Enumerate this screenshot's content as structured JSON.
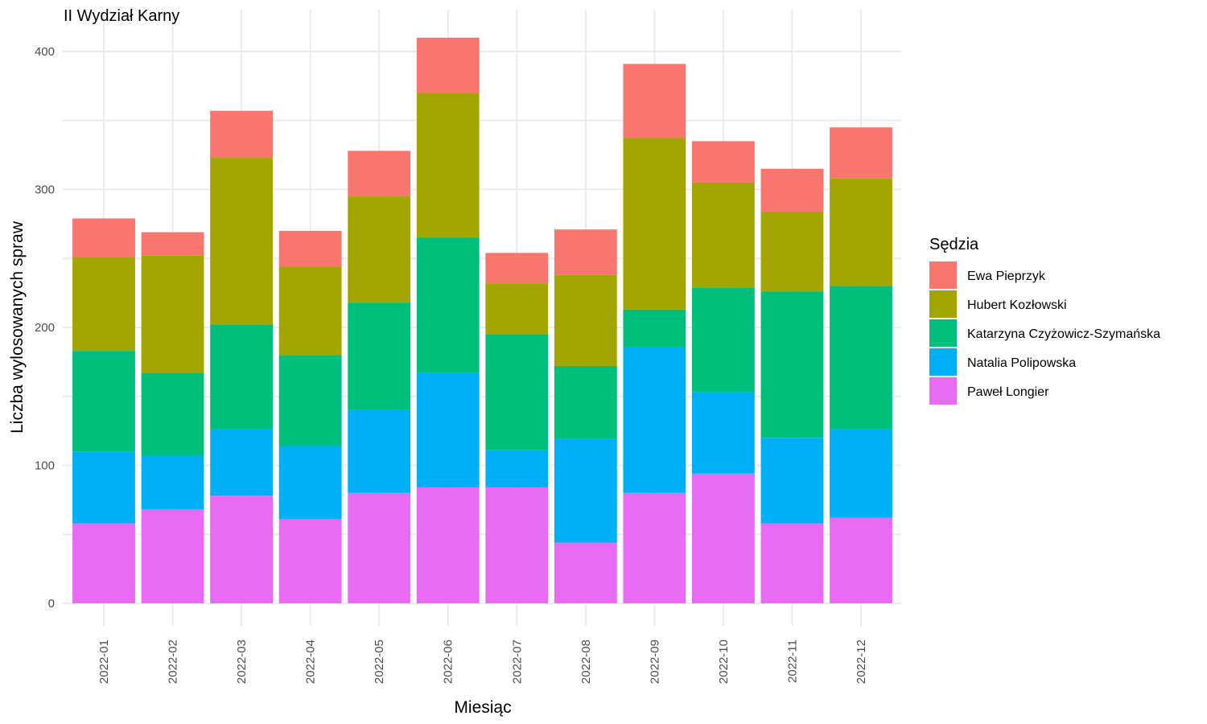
{
  "chart_data": {
    "type": "bar",
    "stacked": true,
    "title": "II Wydział Karny",
    "xlabel": "Miesiąc",
    "ylabel": "Liczba wylosowanych spraw",
    "ylim": [
      0,
      410
    ],
    "yticks": [
      0,
      100,
      200,
      300,
      400
    ],
    "grid": true,
    "legend_title": "Sędzia",
    "legend_position": "right",
    "categories": [
      "2022-01",
      "2022-02",
      "2022-03",
      "2022-04",
      "2022-05",
      "2022-06",
      "2022-07",
      "2022-08",
      "2022-09",
      "2022-10",
      "2022-11",
      "2022-12"
    ],
    "series": [
      {
        "name": "Paweł Longier",
        "color": "#E76BF3",
        "values": [
          58,
          68,
          78,
          61,
          80,
          84,
          84,
          44,
          80,
          94,
          58,
          62
        ]
      },
      {
        "name": "Natalia Polipowska",
        "color": "#00B0F6",
        "values": [
          52,
          39,
          48,
          53,
          60,
          83,
          27,
          75,
          106,
          59,
          62,
          64
        ]
      },
      {
        "name": "Katarzyna Czyżowicz-Szymańska",
        "color": "#00BF7D",
        "values": [
          73,
          60,
          76,
          66,
          78,
          98,
          84,
          53,
          27,
          76,
          106,
          104
        ]
      },
      {
        "name": "Hubert Kozłowski",
        "color": "#A3A500",
        "values": [
          68,
          85,
          121,
          64,
          77,
          105,
          37,
          66,
          124,
          76,
          58,
          78
        ]
      },
      {
        "name": "Ewa Pieprzyk",
        "color": "#F8766D",
        "values": [
          28,
          17,
          34,
          26,
          33,
          40,
          22,
          33,
          54,
          30,
          31,
          37
        ]
      }
    ],
    "legend_order": [
      "Ewa Pieprzyk",
      "Hubert Kozłowski",
      "Katarzyna Czyżowicz-Szymańska",
      "Natalia Polipowska",
      "Paweł Longier"
    ]
  }
}
